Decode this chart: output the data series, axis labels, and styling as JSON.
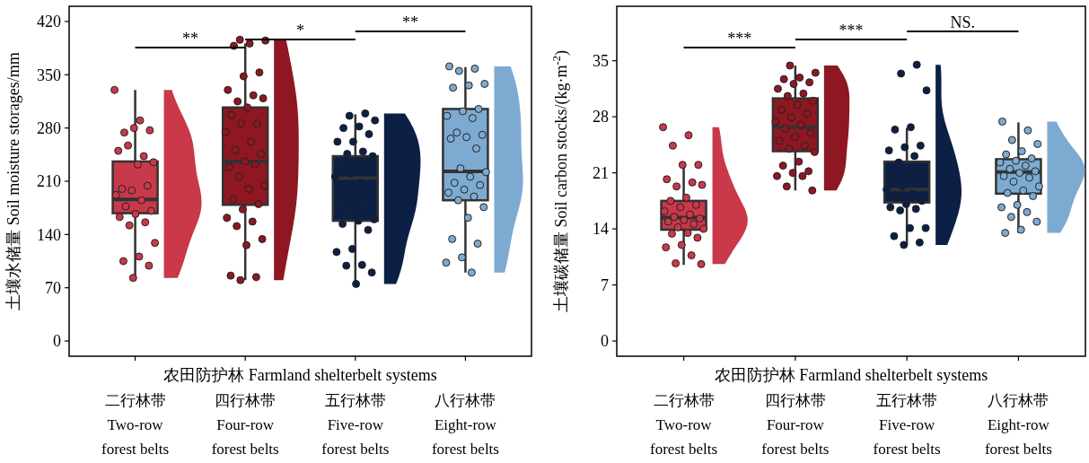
{
  "chart_data": [
    {
      "type": "box",
      "xlabel": "农田防护林 Farmland shelterbelt systems",
      "ylabel": "土壤水储量 Soil moisture storages/mm",
      "categories": [
        "二行林带\nTwo-row\nforest belts",
        "四行林带\nFour-row\nforest belts",
        "五行林带\nFive-row\nforest belts",
        "八行林带\nEight-row\nforest belts"
      ],
      "colors": [
        "#c9394a",
        "#8e1722",
        "#0c1f45",
        "#7daad1"
      ],
      "ylim": [
        -20,
        440
      ],
      "yticks": [
        0,
        70,
        140,
        210,
        280,
        350,
        420
      ],
      "boxes": [
        {
          "low": 83,
          "q1": 168,
          "median": 186,
          "q3": 236,
          "high": 330
        },
        {
          "low": 80,
          "q1": 179,
          "median": 236,
          "q3": 307,
          "high": 391
        },
        {
          "low": 75,
          "q1": 158,
          "median": 214,
          "q3": 243,
          "high": 298
        },
        {
          "low": 90,
          "q1": 185,
          "median": 223,
          "q3": 305,
          "high": 360
        }
      ],
      "annotations": [
        "**",
        "*",
        "**"
      ],
      "series": [
        {
          "type": "scatter",
          "color": "#c9394a",
          "x": [
            "二行林带\nTwo-row\nforest belts",
            "二行林带\nTwo-row\nforest belts",
            "二行林带\nTwo-row\nforest belts",
            "二行林带\nTwo-row\nforest belts",
            "二行林带\nTwo-row\nforest belts",
            "二行林带\nTwo-row\nforest belts",
            "二行林带\nTwo-row\nforest belts",
            "二行林带\nTwo-row\nforest belts",
            "二行林带\nTwo-row\nforest belts",
            "二行林带\nTwo-row\nforest belts",
            "二行林带\nTwo-row\nforest belts",
            "二行林带\nTwo-row\nforest belts",
            "二行林带\nTwo-row\nforest belts",
            "二行林带\nTwo-row\nforest belts",
            "二行林带\nTwo-row\nforest belts",
            "二行林带\nTwo-row\nforest belts",
            "二行林带\nTwo-row\nforest belts",
            "二行林带\nTwo-row\nforest belts",
            "二行林带\nTwo-row\nforest belts",
            "二行林带\nTwo-row\nforest belts",
            "二行林带\nTwo-row\nforest belts",
            "二行林带\nTwo-row\nforest belts",
            "二行林带\nTwo-row\nforest belts",
            "二行林带\nTwo-row\nforest belts",
            "二行林带\nTwo-row\nforest belts",
            "二行林带\nTwo-row\nforest belts"
          ],
          "values": [
            330,
            290,
            274,
            277,
            280,
            250,
            243,
            257,
            235,
            232,
            200,
            204,
            198,
            192,
            185,
            177,
            171,
            167,
            163,
            156,
            152,
            129,
            111,
            105,
            99,
            83
          ]
        },
        {
          "type": "scatter",
          "color": "#8e1722",
          "x": [
            "四行林带\nFour-row\nforest belts",
            "四行林带\nFour-row\nforest belts",
            "四行林带\nFour-row\nforest belts",
            "四行林带\nFour-row\nforest belts",
            "四行林带\nFour-row\nforest belts",
            "四行林带\nFour-row\nforest belts",
            "四行林带\nFour-row\nforest belts",
            "四行林带\nFour-row\nforest belts",
            "四行林带\nFour-row\nforest belts",
            "四行林带\nFour-row\nforest belts",
            "四行林带\nFour-row\nforest belts",
            "四行林带\nFour-row\nforest belts",
            "四行林带\nFour-row\nforest belts",
            "四行林带\nFour-row\nforest belts",
            "四行林带\nFour-row\nforest belts",
            "四行林带\nFour-row\nforest belts",
            "四行林带\nFour-row\nforest belts",
            "四行林带\nFour-row\nforest belts",
            "四行林带\nFour-row\nforest belts",
            "四行林带\nFour-row\nforest belts",
            "四行林带\nFour-row\nforest belts",
            "四行林带\nFour-row\nforest belts",
            "四行林带\nFour-row\nforest belts",
            "四行林带\nFour-row\nforest belts",
            "四行林带\nFour-row\nforest belts",
            "四行林带\nFour-row\nforest belts",
            "四行林带\nFour-row\nforest belts",
            "四行林带\nFour-row\nforest belts",
            "四行林带\nFour-row\nforest belts",
            "四行林带\nFour-row\nforest belts",
            "四行林带\nFour-row\nforest belts",
            "四行林带\nFour-row\nforest belts",
            "四行林带\nFour-row\nforest belts",
            "四行林带\nFour-row\nforest belts",
            "四行林带\nFour-row\nforest belts"
          ],
          "values": [
            396,
            395,
            391,
            388,
            353,
            348,
            330,
            323,
            315,
            319,
            307,
            297,
            286,
            286,
            275,
            262,
            251,
            246,
            236,
            229,
            232,
            216,
            204,
            200,
            186,
            180,
            173,
            162,
            157,
            151,
            134,
            126,
            86,
            84,
            80
          ]
        },
        {
          "type": "scatter",
          "color": "#0c1f45",
          "x": [
            "五行林带\nFive-row\nforest belts",
            "五行林带\nFive-row\nforest belts",
            "五行林带\nFive-row\nforest belts",
            "五行林带\nFive-row\nforest belts",
            "五行林带\nFive-row\nforest belts",
            "五行林带\nFive-row\nforest belts",
            "五行林带\nFive-row\nforest belts",
            "五行林带\nFive-row\nforest belts",
            "五行林带\nFive-row\nforest belts",
            "五行林带\nFive-row\nforest belts",
            "五行林带\nFive-row\nforest belts",
            "五行林带\nFive-row\nforest belts",
            "五行林带\nFive-row\nforest belts",
            "五行林带\nFive-row\nforest belts",
            "五行林带\nFive-row\nforest belts",
            "五行林带\nFive-row\nforest belts",
            "五行林带\nFive-row\nforest belts",
            "五行林带\nFive-row\nforest belts",
            "五行林带\nFive-row\nforest belts",
            "五行林带\nFive-row\nforest belts",
            "五行林带\nFive-row\nforest belts",
            "五行林带\nFive-row\nforest belts",
            "五行林带\nFive-row\nforest belts",
            "五行林带\nFive-row\nforest belts",
            "五行林带\nFive-row\nforest belts",
            "五行林带\nFive-row\nforest belts",
            "五行林带\nFive-row\nforest belts",
            "五行林带\nFive-row\nforest belts",
            "五行林带\nFive-row\nforest belts",
            "五行林带\nFive-row\nforest belts",
            "五行林带\nFive-row\nforest belts",
            "五行林带\nFive-row\nforest belts",
            "五行林带\nFive-row\nforest belts"
          ],
          "values": [
            299,
            296,
            290,
            282,
            280,
            272,
            262,
            262,
            249,
            246,
            243,
            237,
            232,
            226,
            220,
            216,
            208,
            198,
            195,
            186,
            179,
            177,
            168,
            160,
            158,
            154,
            146,
            121,
            117,
            100,
            99,
            90,
            75
          ]
        },
        {
          "type": "scatter",
          "color": "#7daad1",
          "x": [
            "八行林带\nEight-row\nforest belts",
            "八行林带\nEight-row\nforest belts",
            "八行林带\nEight-row\nforest belts",
            "八行林带\nEight-row\nforest belts",
            "八行林带\nEight-row\nforest belts",
            "八行林带\nEight-row\nforest belts",
            "八行林带\nEight-row\nforest belts",
            "八行林带\nEight-row\nforest belts",
            "八行林带\nEight-row\nforest belts",
            "八行林带\nEight-row\nforest belts",
            "八行林带\nEight-row\nforest belts",
            "八行林带\nEight-row\nforest belts",
            "八行林带\nEight-row\nforest belts",
            "八行林带\nEight-row\nforest belts",
            "八行林带\nEight-row\nforest belts",
            "八行林带\nEight-row\nforest belts",
            "八行林带\nEight-row\nforest belts",
            "八行林带\nEight-row\nforest belts",
            "八行林带\nEight-row\nforest belts",
            "八行林带\nEight-row\nforest belts",
            "八行林带\nEight-row\nforest belts",
            "八行林带\nEight-row\nforest belts",
            "八行林带\nEight-row\nforest belts",
            "八行林带\nEight-row\nforest belts",
            "八行林带\nEight-row\nforest belts",
            "八行林带\nEight-row\nforest belts",
            "八行林带\nEight-row\nforest belts",
            "八行林带\nEight-row\nforest belts",
            "八行林带\nEight-row\nforest belts",
            "八行林带\nEight-row\nforest belts",
            "八行林带\nEight-row\nforest belts"
          ],
          "values": [
            361,
            358,
            355,
            338,
            336,
            333,
            305,
            302,
            296,
            293,
            274,
            271,
            268,
            266,
            253,
            227,
            222,
            216,
            208,
            205,
            199,
            195,
            190,
            185,
            176,
            162,
            134,
            128,
            110,
            103,
            90
          ]
        }
      ]
    },
    {
      "type": "box",
      "xlabel": "农田防护林 Farmland shelterbelt systems",
      "ylabel": "土壤碳储量 Soil carbon stocks/(kg·m$^{-2}$)",
      "categories": [
        "二行林带\nTwo-row\nforest belts",
        "四行林带\nFour-row\nforest belts",
        "五行林带\nFive-row\nforest belts",
        "八行林带\nEight-row\nforest belts"
      ],
      "colors": [
        "#c9394a",
        "#8e1722",
        "#0c1f45",
        "#7daad1"
      ],
      "ylim": [
        -1.9,
        41.8
      ],
      "yticks": [
        0,
        7,
        14,
        21,
        28,
        35
      ],
      "boxes": [
        {
          "low": 9.5,
          "q1": 13.9,
          "median": 15.4,
          "q3": 17.5,
          "high": 21.9
        },
        {
          "low": 18.8,
          "q1": 23.7,
          "median": 26.7,
          "q3": 30.3,
          "high": 34.4
        },
        {
          "low": 12.0,
          "q1": 17.3,
          "median": 18.9,
          "q3": 22.4,
          "high": 26.6
        },
        {
          "low": 13.5,
          "q1": 18.4,
          "median": 21.1,
          "q3": 22.7,
          "high": 27.3
        }
      ],
      "annotations": [
        "***",
        "***",
        "NS."
      ],
      "series": [
        {
          "type": "scatter",
          "color": "#c9394a",
          "x": [
            "二行林带\nTwo-row\nforest belts",
            "二行林带\nTwo-row\nforest belts",
            "二行林带\nTwo-row\nforest belts",
            "二行林带\nTwo-row\nforest belts",
            "二行林带\nTwo-row\nforest belts",
            "二行林带\nTwo-row\nforest belts",
            "二行林带\nTwo-row\nforest belts",
            "二行林带\nTwo-row\nforest belts",
            "二行林带\nTwo-row\nforest belts",
            "二行林带\nTwo-row\nforest belts",
            "二行林带\nTwo-row\nforest belts",
            "二行林带\nTwo-row\nforest belts",
            "二行林带\nTwo-row\nforest belts",
            "二行林带\nTwo-row\nforest belts",
            "二行林带\nTwo-row\nforest belts",
            "二行林带\nTwo-row\nforest belts",
            "二行林带\nTwo-row\nforest belts",
            "二行林带\nTwo-row\nforest belts",
            "二行林带\nTwo-row\nforest belts",
            "二行林带\nTwo-row\nforest belts",
            "二行林带\nTwo-row\nforest belts",
            "二行林带\nTwo-row\nforest belts",
            "二行林带\nTwo-row\nforest belts",
            "二行林带\nTwo-row\nforest belts",
            "二行林带\nTwo-row\nforest belts",
            "二行林带\nTwo-row\nforest belts",
            "二行林带\nTwo-row\nforest belts",
            "二行林带\nTwo-row\nforest belts",
            "二行林带\nTwo-row\nforest belts",
            "二行林带\nTwo-row\nforest belts"
          ],
          "values": [
            26.7,
            25.7,
            24.4,
            22.0,
            22.0,
            20.2,
            19.8,
            19.3,
            19.5,
            17.9,
            17.5,
            17.0,
            16.7,
            16.2,
            15.8,
            15.5,
            15.3,
            15.1,
            14.9,
            14.6,
            14.2,
            14.0,
            13.5,
            13.4,
            12.9,
            12.0,
            11.7,
            10.7,
            9.7,
            9.6
          ]
        },
        {
          "type": "scatter",
          "color": "#8e1722",
          "x": [
            "四行林带\nFour-row\nforest belts",
            "四行林带\nFour-row\nforest belts",
            "四行林带\nFour-row\nforest belts",
            "四行林带\nFour-row\nforest belts",
            "四行林带\nFour-row\nforest belts",
            "四行林带\nFour-row\nforest belts",
            "四行林带\nFour-row\nforest belts",
            "四行林带\nFour-row\nforest belts",
            "四行林带\nFour-row\nforest belts",
            "四行林带\nFour-row\nforest belts",
            "四行林带\nFour-row\nforest belts",
            "四行林带\nFour-row\nforest belts",
            "四行林带\nFour-row\nforest belts",
            "四行林带\nFour-row\nforest belts",
            "四行林带\nFour-row\nforest belts",
            "四行林带\nFour-row\nforest belts",
            "四行林带\nFour-row\nforest belts",
            "四行林带\nFour-row\nforest belts",
            "四行林带\nFour-row\nforest belts",
            "四行林带\nFour-row\nforest belts",
            "四行林带\nFour-row\nforest belts",
            "四行林带\nFour-row\nforest belts",
            "四行林带\nFour-row\nforest belts",
            "四行林带\nFour-row\nforest belts",
            "四行林带\nFour-row\nforest belts",
            "四行林带\nFour-row\nforest belts",
            "四行林带\nFour-row\nforest belts",
            "四行林带\nFour-row\nforest belts",
            "四行林带\nFour-row\nforest belts",
            "四行林带\nFour-row\nforest belts",
            "四行林带\nFour-row\nforest belts"
          ],
          "values": [
            34.4,
            33.5,
            32.9,
            32.7,
            32.3,
            32.1,
            31.5,
            30.9,
            30.6,
            30.0,
            29.5,
            28.9,
            28.4,
            27.9,
            27.4,
            27.0,
            26.5,
            26.0,
            25.5,
            25.0,
            24.4,
            24.0,
            23.6,
            22.4,
            21.9,
            21.2,
            21.0,
            20.6,
            20.6,
            19.3,
            18.8
          ]
        },
        {
          "type": "scatter",
          "color": "#0c1f45",
          "x": [
            "五行林带\nFive-row\nforest belts",
            "五行林带\nFive-row\nforest belts",
            "五行林带\nFive-row\nforest belts",
            "五行林带\nFive-row\nforest belts",
            "五行林带\nFive-row\nforest belts",
            "五行林带\nFive-row\nforest belts",
            "五行林带\nFive-row\nforest belts",
            "五行林带\nFive-row\nforest belts",
            "五行林带\nFive-row\nforest belts",
            "五行林带\nFive-row\nforest belts",
            "五行林带\nFive-row\nforest belts",
            "五行林带\nFive-row\nforest belts",
            "五行林带\nFive-row\nforest belts",
            "五行林带\nFive-row\nforest belts",
            "五行林带\nFive-row\nforest belts",
            "五行林带\nFive-row\nforest belts",
            "五行林带\nFive-row\nforest belts",
            "五行林带\nFive-row\nforest belts",
            "五行林带\nFive-row\nforest belts",
            "五行林带\nFive-row\nforest belts",
            "五行林带\nFive-row\nforest belts",
            "五行林带\nFive-row\nforest belts",
            "五行林带\nFive-row\nforest belts",
            "五行林带\nFive-row\nforest belts",
            "五行林带\nFive-row\nforest belts",
            "五行林带\nFive-row\nforest belts",
            "五行林带\nFive-row\nforest belts",
            "五行林带\nFive-row\nforest belts"
          ],
          "values": [
            34.5,
            33.4,
            31.3,
            26.7,
            26.4,
            24.4,
            24.2,
            23.8,
            23.1,
            22.3,
            21.4,
            20.9,
            20.5,
            19.9,
            19.3,
            18.9,
            18.4,
            17.9,
            17.5,
            17.1,
            16.7,
            16.5,
            16.3,
            14.1,
            14.1,
            13.1,
            12.3,
            12.0
          ]
        },
        {
          "type": "scatter",
          "color": "#7daad1",
          "x": [
            "八行林带\nEight-row\nforest belts",
            "八行林带\nEight-row\nforest belts",
            "八行林带\nEight-row\nforest belts",
            "八行林带\nEight-row\nforest belts",
            "八行林带\nEight-row\nforest belts",
            "八行林带\nEight-row\nforest belts",
            "八行林带\nEight-row\nforest belts",
            "八行林带\nEight-row\nforest belts",
            "八行林带\nEight-row\nforest belts",
            "八行林带\nEight-row\nforest belts",
            "八行林带\nEight-row\nforest belts",
            "八行林带\nEight-row\nforest belts",
            "八行林带\nEight-row\nforest belts",
            "八行林带\nEight-row\nforest belts",
            "八行林带\nEight-row\nforest belts",
            "八行林带\nEight-row\nforest belts",
            "八行林带\nEight-row\nforest belts",
            "八行林带\nEight-row\nforest belts",
            "八行林带\nEight-row\nforest belts",
            "八行林带\nEight-row\nforest belts",
            "八行林带\nEight-row\nforest belts",
            "八行林带\nEight-row\nforest belts",
            "八行林带\nEight-row\nforest belts",
            "八行林带\nEight-row\nforest belts",
            "八行林带\nEight-row\nforest belts",
            "八行林带\nEight-row\nforest belts",
            "八行林带\nEight-row\nforest belts"
          ],
          "values": [
            27.4,
            26.3,
            25.1,
            24.6,
            23.7,
            23.3,
            22.8,
            22.5,
            22.3,
            21.9,
            21.5,
            21.2,
            21.0,
            20.6,
            20.4,
            19.9,
            19.3,
            18.8,
            18.5,
            18.1,
            17.0,
            16.7,
            16.1,
            15.5,
            14.9,
            13.9,
            13.5
          ]
        }
      ]
    }
  ]
}
